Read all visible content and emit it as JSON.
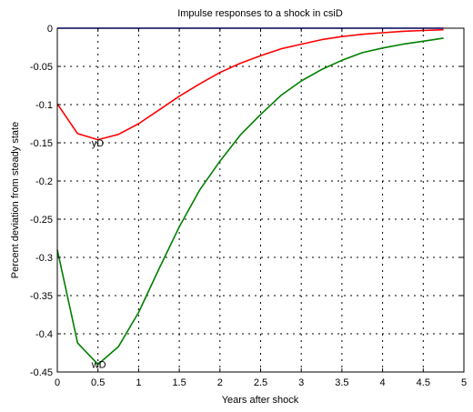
{
  "chart_data": {
    "type": "line",
    "title": "Impulse responses to a shock in csiD",
    "xlabel": "Years after shock",
    "ylabel": "Percent deviation from steady state",
    "xlim": [
      0,
      5
    ],
    "ylim": [
      -0.45,
      0
    ],
    "xticks": [
      0,
      0.5,
      1,
      1.5,
      2,
      2.5,
      3,
      3.5,
      4,
      4.5,
      5
    ],
    "xtick_labels": [
      "0",
      "0.5",
      "1",
      "1.5",
      "2",
      "2.5",
      "3",
      "3.5",
      "4",
      "4.5",
      "5"
    ],
    "yticks": [
      0,
      -0.05,
      -0.1,
      -0.15,
      -0.2,
      -0.25,
      -0.3,
      -0.35,
      -0.4,
      -0.45
    ],
    "ytick_labels": [
      "0",
      "-0.05",
      "-0.1",
      "-0.15",
      "-0.2",
      "-0.25",
      "-0.3",
      "-0.35",
      "-0.4",
      "-0.45"
    ],
    "grid": true,
    "x": [
      0,
      0.25,
      0.5,
      0.75,
      1,
      1.25,
      1.5,
      1.75,
      2,
      2.25,
      2.5,
      2.75,
      3,
      3.25,
      3.5,
      3.75,
      4,
      4.25,
      4.5,
      4.75
    ],
    "series": [
      {
        "name": "yD",
        "color": "#ff0000",
        "label_at": [
          0.5,
          -0.15
        ],
        "values": [
          -0.099,
          -0.138,
          -0.146,
          -0.139,
          -0.125,
          -0.107,
          -0.089,
          -0.073,
          -0.058,
          -0.046,
          -0.036,
          -0.027,
          -0.021,
          -0.015,
          -0.011,
          -0.008,
          -0.006,
          -0.004,
          -0.003,
          -0.002
        ]
      },
      {
        "name": "wD",
        "color": "#008000",
        "label_at": [
          0.5,
          -0.44
        ],
        "values": [
          -0.29,
          -0.412,
          -0.44,
          -0.417,
          -0.372,
          -0.315,
          -0.26,
          -0.212,
          -0.174,
          -0.14,
          -0.113,
          -0.088,
          -0.069,
          -0.054,
          -0.042,
          -0.032,
          -0.026,
          -0.021,
          -0.017,
          -0.013
        ]
      },
      {
        "name": "",
        "color": "#0000ff",
        "values": [
          0,
          0,
          0,
          0,
          0,
          0,
          0,
          0,
          0,
          0,
          0,
          0,
          0,
          0,
          0,
          0,
          0,
          0,
          0,
          0
        ]
      }
    ]
  }
}
